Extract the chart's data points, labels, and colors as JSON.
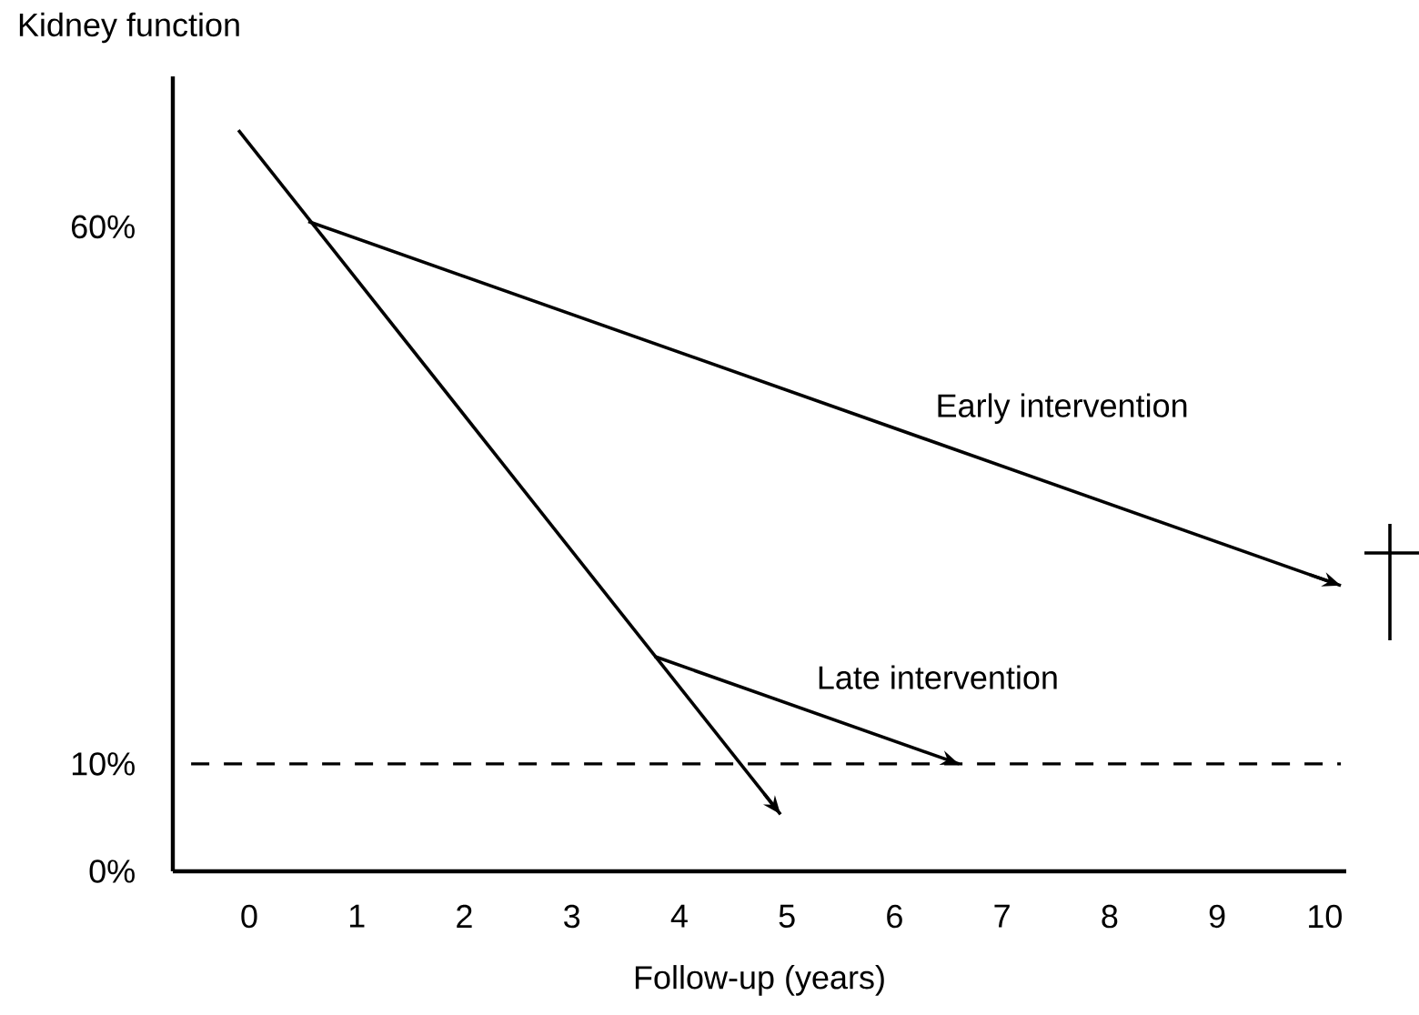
{
  "chart_data": {
    "type": "line",
    "xlabel": "Follow-up (years)",
    "ylabel": "Kidney function",
    "xlim": [
      -0.71,
      10.2
    ],
    "ylim": [
      0,
      74
    ],
    "xticks": [
      0,
      1,
      2,
      3,
      4,
      5,
      6,
      7,
      8,
      9,
      10
    ],
    "yticks": [
      {
        "value": 0,
        "label": "0%"
      },
      {
        "value": 10,
        "label": "10%"
      },
      {
        "value": 60,
        "label": "60%"
      }
    ],
    "line_style": "solid",
    "series": [
      {
        "color": "#000000",
        "x": [
          -0.1,
          4.94
        ],
        "values": [
          69,
          5.3
        ]
      },
      {
        "name": "Early intervention",
        "color": "#000000",
        "x": [
          0.55,
          10.15
        ],
        "values": [
          60.5,
          26.6
        ]
      },
      {
        "name": "Late intervention",
        "color": "#000000",
        "x": [
          3.77,
          6.6
        ],
        "values": [
          20,
          10
        ]
      }
    ],
    "ref_lines": [
      {
        "axis": "y",
        "value": 10,
        "line_style": "dashed",
        "color": "#000000"
      }
    ]
  }
}
